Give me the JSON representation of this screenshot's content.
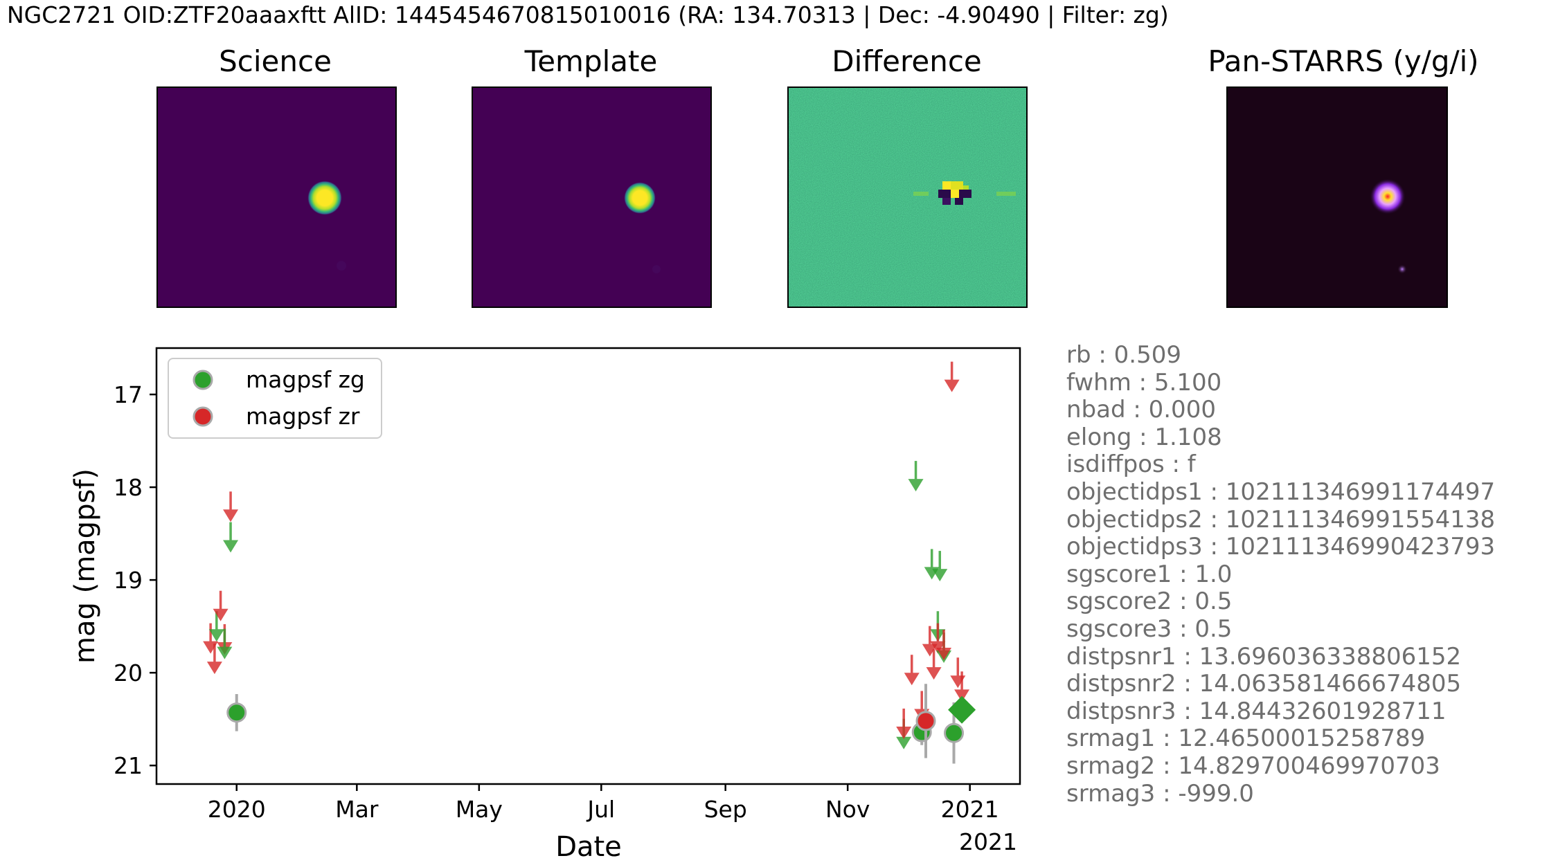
{
  "header": {
    "title": "NGC2721 OID:ZTF20aaaxftt AlID: 1445454670815010016 (RA: 134.70313 | Dec: -4.90490 | Filter: zg)"
  },
  "cutouts": [
    {
      "title": "Science",
      "colormap": "viridis"
    },
    {
      "title": "Template",
      "colormap": "viridis"
    },
    {
      "title": "Difference",
      "colormap": "viridis"
    },
    {
      "title": "Pan-STARRS (y/g/i)",
      "colormap": "color composite"
    }
  ],
  "stats": [
    "rb : 0.509",
    "fwhm : 5.100",
    "nbad : 0.000",
    "elong : 1.108",
    "isdiffpos : f",
    "objectidps1 : 102111346991174497",
    "objectidps2 : 102111346991554138",
    "objectidps3 : 102111346990423793",
    "sgscore1 : 1.0",
    "sgscore2 : 0.5",
    "sgscore3 : 0.5",
    "distpsnr1 : 13.696036338806152",
    "distpsnr2 : 14.063581466674805",
    "distpsnr3 : 14.84432601928711",
    "srmag1 : 12.46500015258789",
    "srmag2 : 14.829700469970703",
    "srmag3 : -999.0"
  ],
  "chart_data": {
    "type": "scatter",
    "xlabel": "Date",
    "ylabel": "mag (magpsf)",
    "x_type": "date",
    "xlim": [
      "2019-11-22",
      "2021-01-26"
    ],
    "ylim": [
      21.2,
      16.5
    ],
    "y_inverted": true,
    "xticks": [
      {
        "date": "2020-01-01",
        "label": "2020"
      },
      {
        "date": "2020-03-01",
        "label": "Mar"
      },
      {
        "date": "2020-05-01",
        "label": "May"
      },
      {
        "date": "2020-07-01",
        "label": "Jul"
      },
      {
        "date": "2020-09-01",
        "label": "Sep"
      },
      {
        "date": "2020-11-01",
        "label": "Nov"
      },
      {
        "date": "2021-01-01",
        "label": "2021"
      }
    ],
    "x_offset_label": "2021",
    "yticks": [
      17,
      18,
      19,
      20,
      21
    ],
    "colors": {
      "zg": "#2ca02c",
      "zr": "#d62728",
      "errorbar": "#a9a9a9"
    },
    "legend": {
      "location": "top-left",
      "entries": [
        {
          "label": "magpsf zg",
          "color": "#2ca02c"
        },
        {
          "label": "magpsf zr",
          "color": "#d62728"
        }
      ]
    },
    "series": [
      {
        "name": "magpsf zg",
        "filter": "zg",
        "marker": "circle",
        "points": [
          {
            "date": "2020-01-01",
            "mag": 20.43,
            "err": 0.2
          },
          {
            "date": "2020-12-08",
            "mag": 20.64,
            "err": 0.14
          },
          {
            "date": "2020-12-24",
            "mag": 20.65,
            "err": 0.33
          }
        ]
      },
      {
        "name": "magpsf zr",
        "filter": "zr",
        "marker": "circle",
        "points": [
          {
            "date": "2020-12-10",
            "mag": 20.52,
            "err": 0.4
          }
        ]
      }
    ],
    "current_alert": {
      "filter": "zg",
      "marker": "diamond",
      "date": "2020-12-28",
      "mag": 20.4
    },
    "upper_limits": [
      {
        "filter": "zr",
        "date": "2019-12-19",
        "mag": 19.75
      },
      {
        "filter": "zr",
        "date": "2019-12-21",
        "mag": 19.97
      },
      {
        "filter": "zg",
        "date": "2019-12-22",
        "mag": 19.62
      },
      {
        "filter": "zr",
        "date": "2019-12-24",
        "mag": 19.4
      },
      {
        "filter": "zr",
        "date": "2019-12-26",
        "mag": 19.76
      },
      {
        "filter": "zg",
        "date": "2019-12-26",
        "mag": 19.81
      },
      {
        "filter": "zr",
        "date": "2019-12-29",
        "mag": 18.33
      },
      {
        "filter": "zg",
        "date": "2019-12-29",
        "mag": 18.66
      },
      {
        "filter": "zg",
        "date": "2020-11-29",
        "mag": 20.78
      },
      {
        "filter": "zr",
        "date": "2020-11-29",
        "mag": 20.67
      },
      {
        "filter": "zr",
        "date": "2020-12-03",
        "mag": 20.09
      },
      {
        "filter": "zg",
        "date": "2020-12-05",
        "mag": 18.0
      },
      {
        "filter": "zr",
        "date": "2020-12-08",
        "mag": 20.48
      },
      {
        "filter": "zr",
        "date": "2020-12-12",
        "mag": 19.78
      },
      {
        "filter": "zg",
        "date": "2020-12-13",
        "mag": 18.95
      },
      {
        "filter": "zr",
        "date": "2020-12-14",
        "mag": 20.03
      },
      {
        "filter": "zg",
        "date": "2020-12-16",
        "mag": 19.62
      },
      {
        "filter": "zr",
        "date": "2020-12-16",
        "mag": 19.75
      },
      {
        "filter": "zg",
        "date": "2020-12-17",
        "mag": 18.97
      },
      {
        "filter": "zg",
        "date": "2020-12-19",
        "mag": 19.85
      },
      {
        "filter": "zr",
        "date": "2020-12-19",
        "mag": 19.82
      },
      {
        "filter": "zr",
        "date": "2020-12-23",
        "mag": 16.93
      },
      {
        "filter": "zr",
        "date": "2020-12-26",
        "mag": 20.12
      },
      {
        "filter": "zr",
        "date": "2020-12-28",
        "mag": 20.27
      }
    ]
  }
}
